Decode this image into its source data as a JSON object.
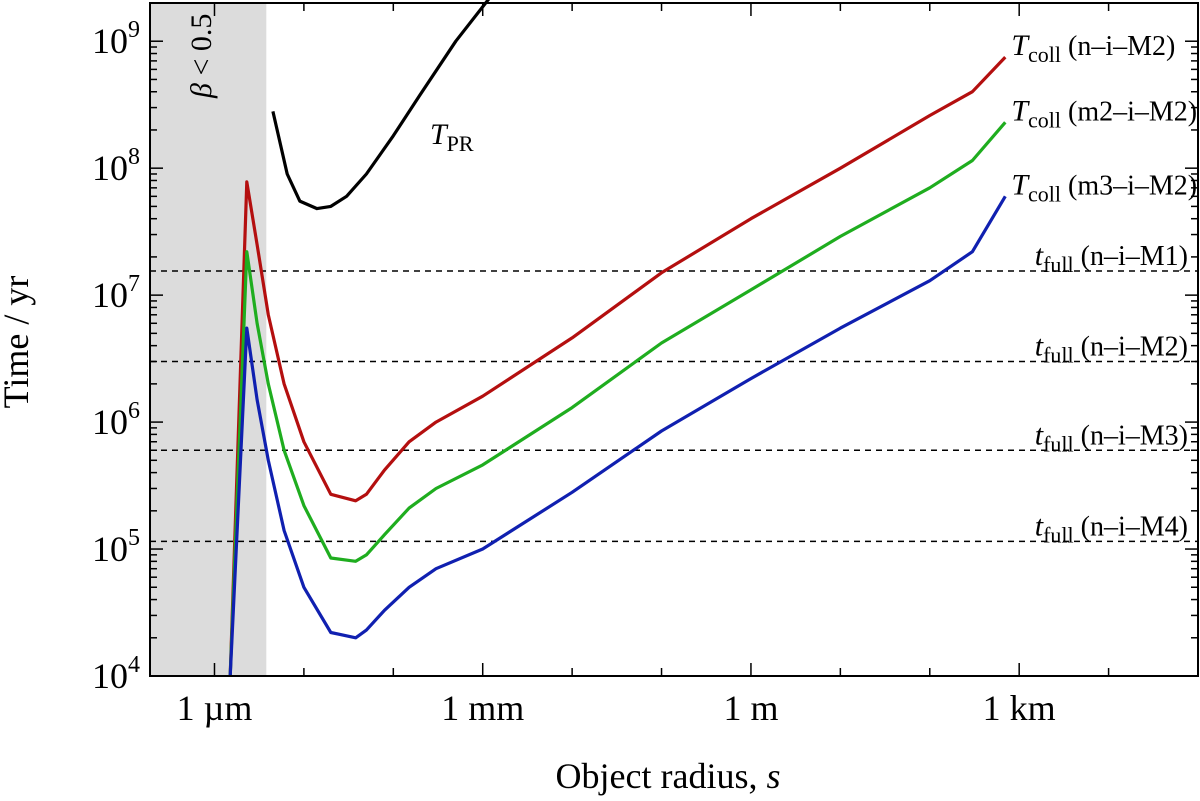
{
  "chart_data": {
    "type": "line",
    "xscale": "log",
    "yscale": "log",
    "xlabel": "Object radius, ",
    "xlabel_var": "s",
    "ylabel": "Time / yr",
    "xlim_m": [
      1.9e-07,
      100000.0
    ],
    "ylim_yr": [
      10000,
      2000000000
    ],
    "x_tick_labels": [
      {
        "label": "1 µm",
        "value_m": 1e-06
      },
      {
        "label": "1 mm",
        "value_m": 0.001
      },
      {
        "label": "1 m",
        "value_m": 1
      },
      {
        "label": "1 km",
        "value_m": 1000
      }
    ],
    "y_tick_labels": [
      {
        "base": "10",
        "exp": "4",
        "value": 10000
      },
      {
        "base": "10",
        "exp": "5",
        "value": 100000
      },
      {
        "base": "10",
        "exp": "6",
        "value": 1000000
      },
      {
        "base": "10",
        "exp": "7",
        "value": 10000000
      },
      {
        "base": "10",
        "exp": "8",
        "value": 100000000
      },
      {
        "base": "10",
        "exp": "9",
        "value": 1000000000
      }
    ],
    "shaded_region": {
      "label_var": "β",
      "label_rest": " < 0.5",
      "x_from_m": 1.9e-07,
      "x_to_m": 3.8e-06,
      "color": "#dcdcdc"
    },
    "series": [
      {
        "name": "T_PR",
        "color": "#000000",
        "label_main": "T",
        "label_sub": "PR",
        "x_m": [
          4.5e-06,
          6.5e-06,
          9e-06,
          1.4e-05,
          2e-05,
          3e-05,
          5e-05,
          0.0001,
          0.0002,
          0.0005,
          0.0012
        ],
        "y": [
          280000000.0,
          90000000.0,
          55000000.0,
          48000000.0,
          50000000.0,
          60000000.0,
          90000000.0,
          180000000.0,
          380000000.0,
          1000000000.0,
          2200000000.0
        ]
      },
      {
        "name": "T_coll (n-i-M2)",
        "color": "#b40f0f",
        "label_main": "T",
        "label_sub": "coll",
        "label_tag": " (n–i–M2)",
        "x_m": [
          1.5e-06,
          2.3e-06,
          3e-06,
          4e-06,
          6e-06,
          1e-05,
          2e-05,
          3.8e-05,
          5e-05,
          8e-05,
          0.00015,
          0.0003,
          0.001,
          0.01,
          0.1,
          1,
          10,
          100,
          300,
          700
        ],
        "y": [
          10000,
          78000000.0,
          25000000.0,
          7000000.0,
          2000000.0,
          700000.0,
          270000.0,
          240000.0,
          270000.0,
          420000.0,
          700000.0,
          1000000.0,
          1600000.0,
          4600000.0,
          15000000.0,
          40000000.0,
          100000000.0,
          260000000.0,
          400000000.0,
          750000000.0
        ]
      },
      {
        "name": "T_coll (m2-i-M2)",
        "color": "#1fad1f",
        "label_main": "T",
        "label_sub": "coll",
        "label_tag": " (m2–i–M2)",
        "x_m": [
          1.5e-06,
          2.3e-06,
          3e-06,
          4e-06,
          6e-06,
          1e-05,
          2e-05,
          3.8e-05,
          5e-05,
          8e-05,
          0.00015,
          0.0003,
          0.001,
          0.01,
          0.1,
          1,
          10,
          100,
          300,
          700
        ],
        "y": [
          10000,
          22000000.0,
          6000000.0,
          2000000.0,
          600000.0,
          220000.0,
          85000.0,
          80000.0,
          90000.0,
          130000.0,
          210000.0,
          300000.0,
          460000.0,
          1300000.0,
          4200000.0,
          11000000.0,
          29000000.0,
          70000000.0,
          115000000.0,
          230000000.0
        ]
      },
      {
        "name": "T_coll (m3-i-M2)",
        "color": "#1020b0",
        "label_main": "T",
        "label_sub": "coll",
        "label_tag": " (m3–i–M2)",
        "x_m": [
          1.5e-06,
          2.3e-06,
          3e-06,
          4e-06,
          6e-06,
          1e-05,
          2e-05,
          3.8e-05,
          5e-05,
          8e-05,
          0.00015,
          0.0003,
          0.001,
          0.01,
          0.1,
          1,
          10,
          100,
          300,
          700
        ],
        "y": [
          10000,
          5500000.0,
          1500000.0,
          500000.0,
          140000.0,
          50000.0,
          22000.0,
          20000.0,
          23000.0,
          33000.0,
          50000.0,
          70000.0,
          100000.0,
          280000.0,
          850000.0,
          2200000.0,
          5500000.0,
          13000000.0,
          22000000.0,
          60000000.0
        ]
      }
    ],
    "hlines": [
      {
        "name": "t_full (n-i-M1)",
        "y": 15500000.0,
        "label_main": "t",
        "label_sub": "full",
        "label_tag": " (n–i–M1)"
      },
      {
        "name": "t_full (n-i-M2)",
        "y": 3000000.0,
        "label_main": "t",
        "label_sub": "full",
        "label_tag": " (n–i–M2)"
      },
      {
        "name": "t_full (n-i-M3)",
        "y": 600000.0,
        "label_main": "t",
        "label_sub": "full",
        "label_tag": " (n–i–M3)"
      },
      {
        "name": "t_full (n-i-M4)",
        "y": 115000.0,
        "label_main": "t",
        "label_sub": "full",
        "label_tag": " (n–i–M4)"
      }
    ]
  }
}
